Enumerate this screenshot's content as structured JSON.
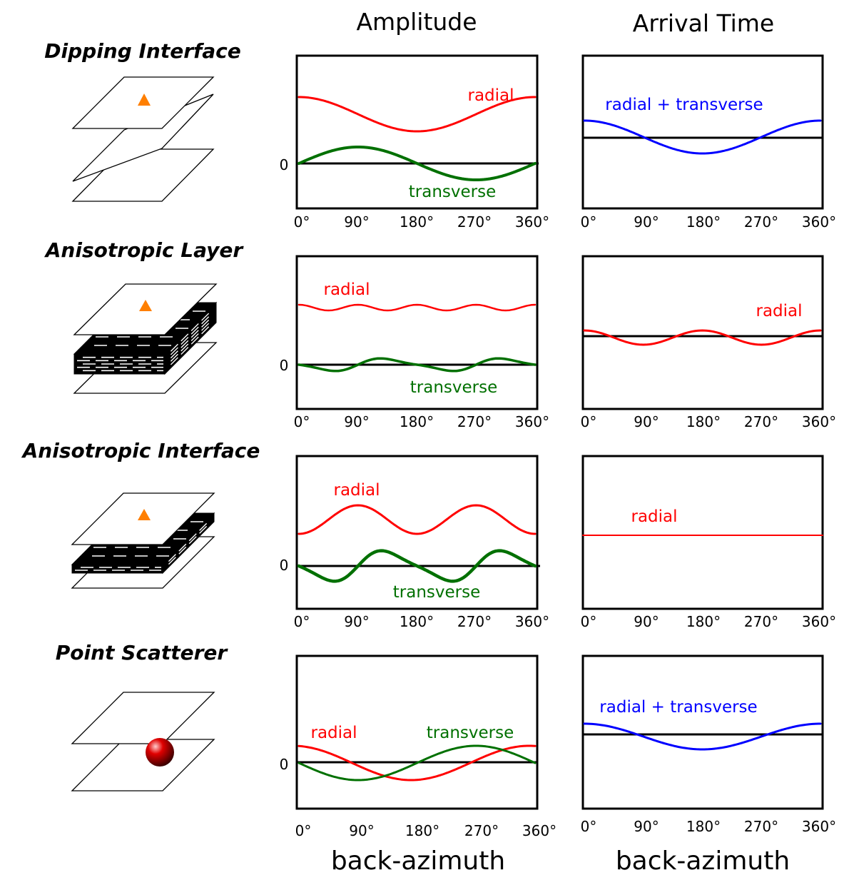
{
  "column_titles": {
    "amplitude": "Amplitude",
    "arrival_time": "Arrival Time"
  },
  "x_axis": {
    "label": "back-azimuth",
    "ticks": [
      "0°",
      "90°",
      "180°",
      "270°",
      "360°"
    ]
  },
  "zero_label": "0",
  "colors": {
    "radial": "#ff0000",
    "transverse": "#007000",
    "radial_plus_transverse": "#0000ff",
    "station": "#ff7f00",
    "scatterer": "#dd0000"
  },
  "rows": [
    {
      "title": "Dipping Interface",
      "icon": "dipping-interface-icon",
      "amplitude": {
        "radial_label": "radial",
        "transverse_label": "transverse"
      },
      "arrival_time": {
        "label": "radial + transverse",
        "label_color": "blue"
      }
    },
    {
      "title": "Anisotropic Layer",
      "icon": "anisotropic-layer-icon",
      "amplitude": {
        "radial_label": "radial",
        "transverse_label": "transverse"
      },
      "arrival_time": {
        "label": "radial",
        "label_color": "red"
      }
    },
    {
      "title": "Anisotropic Interface",
      "icon": "anisotropic-interface-icon",
      "amplitude": {
        "radial_label": "radial",
        "transverse_label": "transverse"
      },
      "arrival_time": {
        "label": "radial",
        "label_color": "red"
      }
    },
    {
      "title": "Point Scatterer",
      "icon": "point-scatterer-icon",
      "amplitude": {
        "radial_label": "radial",
        "transverse_label": "transverse"
      },
      "arrival_time": {
        "label": "radial + transverse",
        "label_color": "blue"
      }
    }
  ]
}
